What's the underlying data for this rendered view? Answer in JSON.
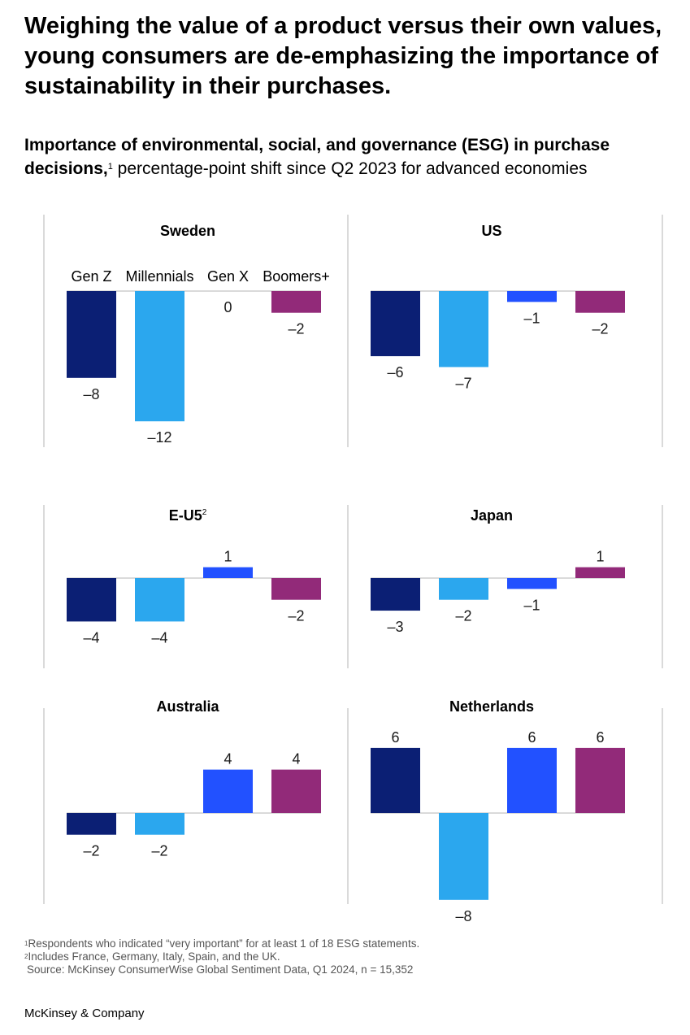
{
  "headline": "Weighing the value of a product versus their own values, young consumers are de-emphasizing the importance of sustainability in their purchases.",
  "subtitle": {
    "bold": "Importance of environmental, social, and governance (ESG) in purchase decisions,",
    "sup": "1",
    "rest": " percentage-point shift since Q2 2023 for advanced economies"
  },
  "chart_data": {
    "type": "bar",
    "categories": [
      "Gen Z",
      "Millennials",
      "Gen X",
      "Boomers+"
    ],
    "colors": [
      "#0b1f74",
      "#2ba7ee",
      "#2251ff",
      "#922a79"
    ],
    "label_colors": [
      "#1a1a1a",
      "#1a1a1a",
      "#1a1a1a",
      "#1a1a1a"
    ],
    "panels": [
      {
        "title": "Sweden",
        "title_sup": "",
        "values": [
          -8,
          -12,
          0,
          -2
        ],
        "labels": [
          "–8",
          "–12",
          "0",
          "–2"
        ]
      },
      {
        "title": "US",
        "title_sup": "",
        "values": [
          -6,
          -7,
          -1,
          -2
        ],
        "labels": [
          "–6",
          "–7",
          "–1",
          "–2"
        ]
      },
      {
        "title": "E-U5",
        "title_sup": "2",
        "values": [
          -4,
          -4,
          1,
          -2
        ],
        "labels": [
          "–4",
          "–4",
          "1",
          "–2"
        ]
      },
      {
        "title": "Japan",
        "title_sup": "",
        "values": [
          -3,
          -2,
          -1,
          1
        ],
        "labels": [
          "–3",
          "–2",
          "–1",
          "1"
        ]
      },
      {
        "title": "Australia",
        "title_sup": "",
        "values": [
          -2,
          -2,
          4,
          4
        ],
        "labels": [
          "–2",
          "–2",
          "4",
          "4"
        ]
      },
      {
        "title": "Netherlands",
        "title_sup": "",
        "values": [
          6,
          -8,
          6,
          6
        ],
        "labels": [
          "6",
          "–8",
          "6",
          "6"
        ]
      }
    ]
  },
  "footnotes": {
    "note1_sup": "1",
    "note1": "Respondents who indicated “very important” for at least 1 of 18 ESG statements.",
    "note2_sup": "2",
    "note2": "Includes France, Germany, Italy, Spain, and the UK.",
    "source": "Source: McKinsey ConsumerWise Global Sentiment Data, Q1 2024, n = 15,352"
  },
  "brand": "McKinsey & Company"
}
